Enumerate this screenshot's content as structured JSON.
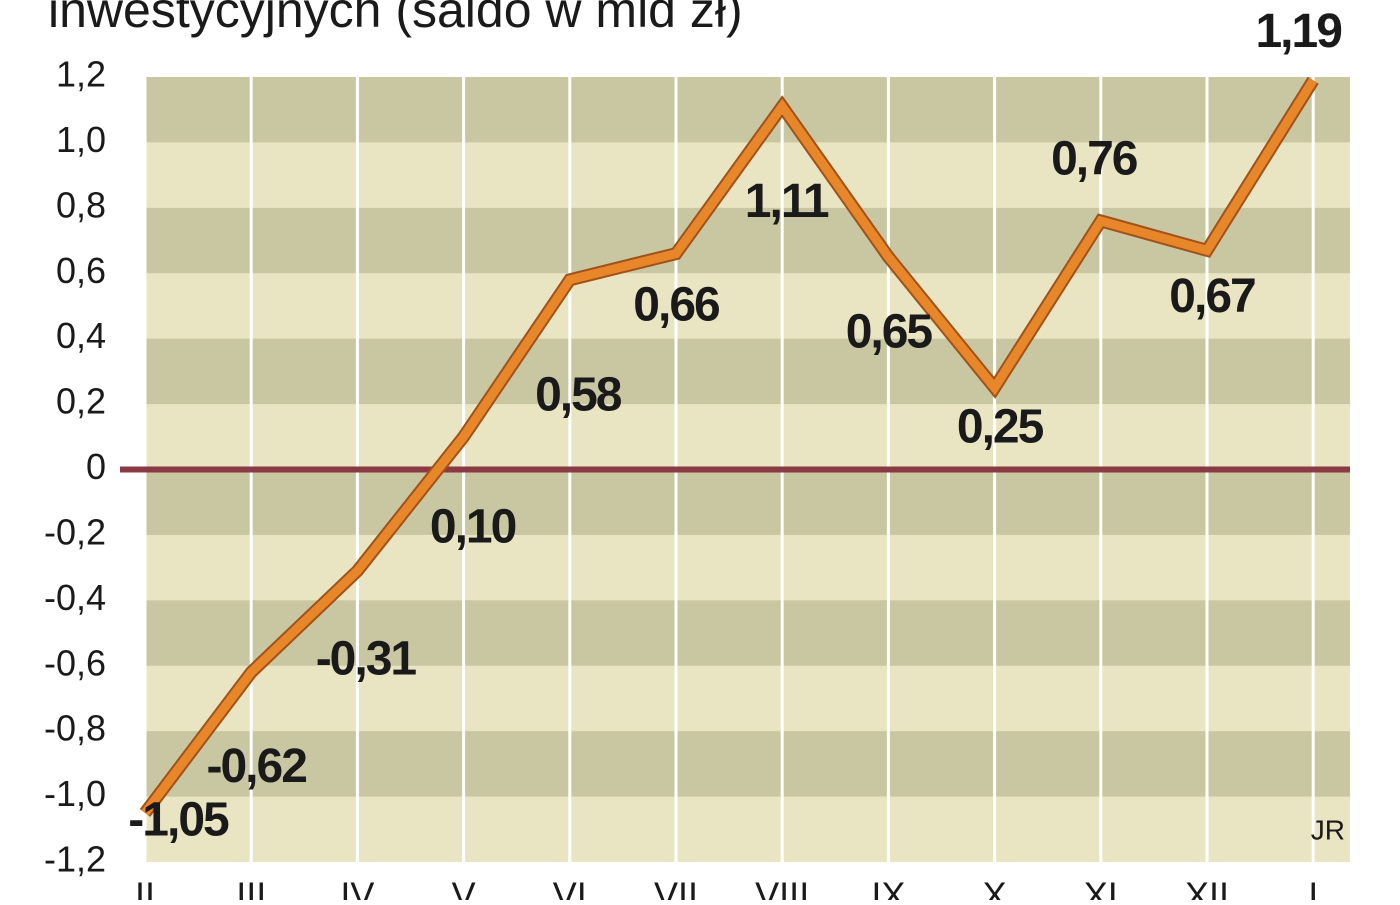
{
  "chart_data": {
    "type": "line",
    "title": "inwestycyjnych (saldo w mld zł)",
    "categories": [
      "II",
      "III",
      "IV",
      "V",
      "VI",
      "VII",
      "VIII",
      "IX",
      "X",
      "XI",
      "XII",
      "I"
    ],
    "series": [
      {
        "name": "saldo",
        "color": "#e8862a",
        "values": [
          -1.05,
          -0.62,
          -0.31,
          0.1,
          0.58,
          0.66,
          1.11,
          0.65,
          0.25,
          0.76,
          0.67,
          1.19
        ],
        "value_labels": [
          "-1,05",
          "-0,62",
          "-0,31",
          "0,10",
          "0,58",
          "0,66",
          "1,11",
          "0,65",
          "0,25",
          "0,76",
          "0,67",
          "1,19"
        ]
      }
    ],
    "ylim": [
      -1.2,
      1.2
    ],
    "yticks": [
      {
        "value": -1.2,
        "label": "-1,2"
      },
      {
        "value": -1.0,
        "label": "-1,0"
      },
      {
        "value": -0.8,
        "label": "-0,8"
      },
      {
        "value": -0.6,
        "label": "-0,6"
      },
      {
        "value": -0.4,
        "label": "-0,4"
      },
      {
        "value": -0.2,
        "label": "-0,2"
      },
      0,
      {
        "value": 0.2,
        "label": "0,2"
      },
      {
        "value": 0.4,
        "label": "0,4"
      },
      {
        "value": 0.6,
        "label": "0,6"
      },
      {
        "value": 0.8,
        "label": "0,8"
      },
      {
        "value": 1.0,
        "label": "1,0"
      },
      {
        "value": 1.2,
        "label": "1,2"
      }
    ],
    "grid": true,
    "source": "JR"
  }
}
